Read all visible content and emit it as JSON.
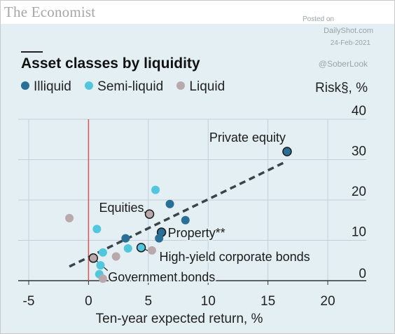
{
  "brand": "The Economist",
  "watermark": {
    "posted_on": "Posted on",
    "site": "DailyShot.com",
    "date": "24-Feb-2021",
    "handle": "@SoberLook"
  },
  "colors": {
    "background": "#e4eff3",
    "illiquid": "#2a6f97",
    "semi_liquid": "#52c6dc",
    "liquid": "#b9a9ad",
    "trend": "#3a434a",
    "zero_line": "#d9545a",
    "grid": "#c2cfd6"
  },
  "chart_data": {
    "type": "scatter",
    "title": "Asset classes by liquidity",
    "xlabel": "Ten-year expected return, %",
    "ylabel": "Risk§, %",
    "xlim": [
      -5,
      20
    ],
    "ylim": [
      0,
      40
    ],
    "xticks": [
      "-5",
      "0",
      "5",
      "10",
      "15",
      "20"
    ],
    "yticks": [
      "0",
      "10",
      "20",
      "30",
      "40"
    ],
    "grid": true,
    "legend_position": "top-left",
    "series": [
      {
        "name": "Illiquid",
        "color_key": "illiquid",
        "points": [
          [
            16.6,
            32
          ],
          [
            6.8,
            19
          ],
          [
            8.1,
            15
          ],
          [
            6.1,
            12
          ],
          [
            3.1,
            10.5
          ],
          [
            5.9,
            10.5
          ]
        ]
      },
      {
        "name": "Semi-liquid",
        "color_key": "semi_liquid",
        "points": [
          [
            5.6,
            22.5
          ],
          [
            0.7,
            12.8
          ],
          [
            4.4,
            8.2
          ],
          [
            1.2,
            7
          ],
          [
            3.3,
            8
          ],
          [
            1.0,
            3.8
          ],
          [
            0.9,
            1.6
          ]
        ]
      },
      {
        "name": "Liquid",
        "color_key": "liquid",
        "points": [
          [
            -1.6,
            15.5
          ],
          [
            5.1,
            16.5
          ],
          [
            0.4,
            5.6
          ],
          [
            2.3,
            6
          ],
          [
            5.3,
            7.5
          ],
          [
            1.2,
            0.5
          ]
        ]
      }
    ],
    "trendline": {
      "from": [
        -1.6,
        3.5
      ],
      "to": [
        16.5,
        29.5
      ]
    },
    "annotations": [
      {
        "text": "Private equity",
        "point": [
          16.6,
          32
        ]
      },
      {
        "text": "Equities",
        "point": [
          5.1,
          16.5
        ]
      },
      {
        "text": "Property**",
        "point": [
          6.1,
          12
        ]
      },
      {
        "text": "High-yield corporate bonds",
        "point": [
          4.4,
          8.2
        ]
      },
      {
        "text": "Government bonds",
        "point": [
          0.4,
          5.6
        ]
      }
    ]
  }
}
